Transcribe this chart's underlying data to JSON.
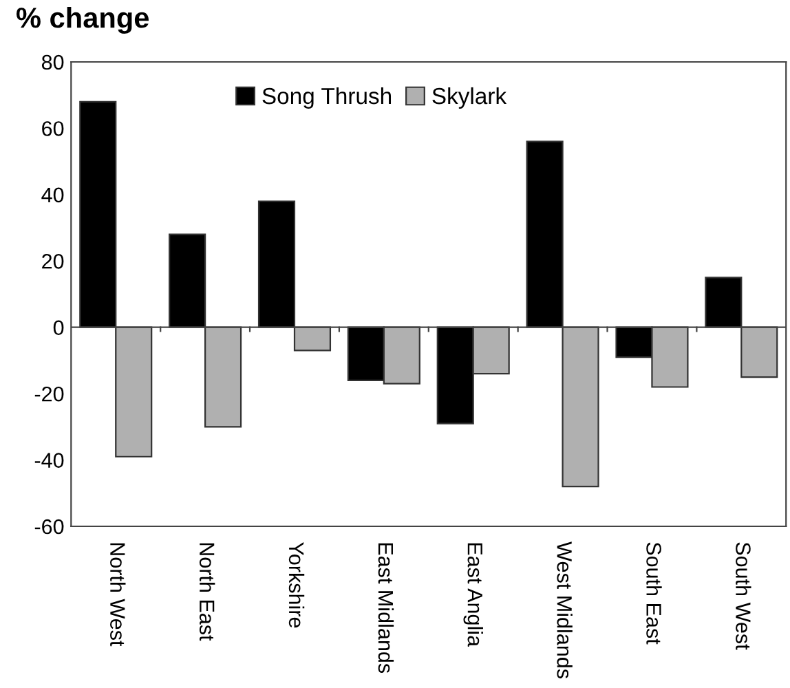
{
  "chart_data": {
    "type": "bar",
    "title": "% change",
    "categories": [
      "North West",
      "North East",
      "Yorkshire",
      "East Midlands",
      "East Anglia",
      "West Midlands",
      "South East",
      "South West"
    ],
    "series": [
      {
        "name": "Song Thrush",
        "color": "#000000",
        "values": [
          68,
          28,
          38,
          -16,
          -29,
          56,
          -9,
          15
        ]
      },
      {
        "name": "Skylark",
        "color": "#b0b0b0",
        "values": [
          -39,
          -30,
          -7,
          -17,
          -14,
          -48,
          -18,
          -15
        ]
      }
    ],
    "ylim": [
      -60,
      80
    ],
    "yticks": [
      -60,
      -40,
      -20,
      0,
      20,
      40,
      60,
      80
    ],
    "legend": "top"
  }
}
